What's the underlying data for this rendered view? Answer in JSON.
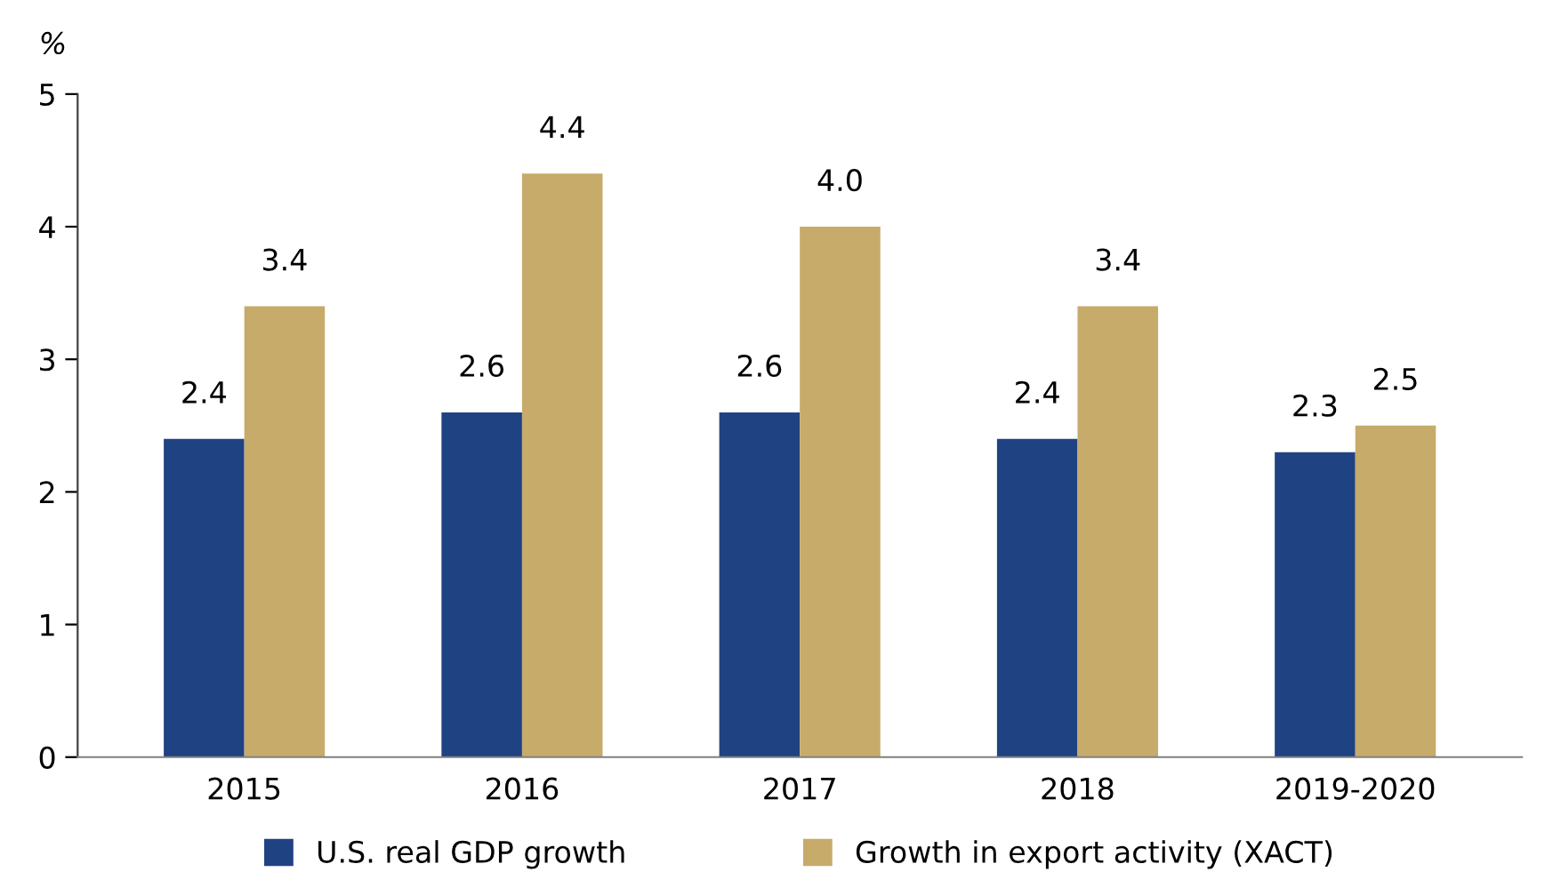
{
  "chart_data": {
    "type": "bar",
    "ylabel": "%",
    "categories": [
      "2015",
      "2016",
      "2017",
      "2018",
      "2019-2020"
    ],
    "series": [
      {
        "name": "U.S. real GDP growth",
        "color": "#1f4283",
        "values": [
          2.4,
          2.6,
          2.6,
          2.4,
          2.3
        ]
      },
      {
        "name": "Growth in export activity (XACT)",
        "color": "#c6ab6b",
        "values": [
          3.4,
          4.4,
          4.0,
          3.4,
          2.5
        ],
        "value_labels": [
          "3.4",
          "4.4",
          "4.0",
          "3.4",
          "2.5"
        ]
      }
    ],
    "ylim": [
      0,
      5
    ],
    "yticks": [
      0,
      1,
      2,
      3,
      4,
      5
    ],
    "grid": false,
    "legend": "bottom",
    "data_labels": true
  }
}
